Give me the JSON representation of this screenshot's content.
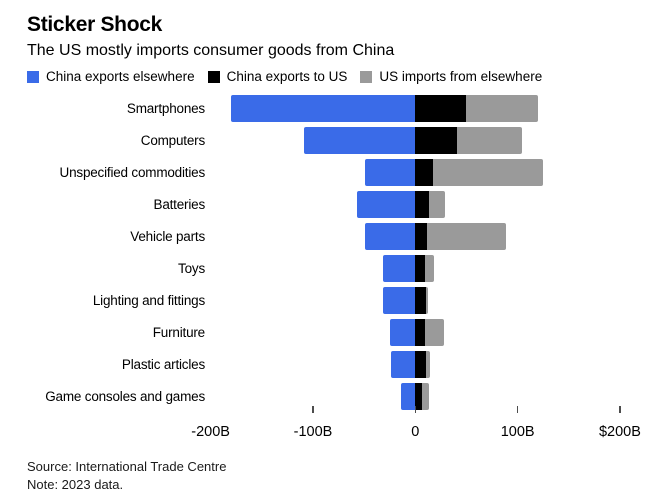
{
  "title": "Sticker Shock",
  "subtitle": "The US mostly imports consumer goods from China",
  "legend": {
    "items": [
      {
        "name": "china-exports-elsewhere",
        "label": "China exports elsewhere",
        "color": "#3A6BE8"
      },
      {
        "name": "china-exports-to-us",
        "label": "China exports to US",
        "color": "#000000"
      },
      {
        "name": "us-imports-from-elsewhere",
        "label": "US imports from elsewhere",
        "color": "#9A9A9A"
      }
    ]
  },
  "footer": {
    "source": "Source: International Trade Centre",
    "note": "Note: 2023 data."
  },
  "colors": {
    "blue": "#3A6BE8",
    "black": "#000000",
    "gray": "#9A9A9A",
    "background": "#FFFFFF",
    "tick": "#4D4D4D"
  },
  "chart_data": {
    "type": "bar",
    "variant": "horizontal-diverging-stacked",
    "unit": "USD billions",
    "title": "Sticker Shock",
    "subtitle": "The US mostly imports consumer goods from China",
    "grid": false,
    "legend_position": "top",
    "categories": [
      "Smartphones",
      "Computers",
      "Unspecified commodities",
      "Batteries",
      "Vehicle parts",
      "Toys",
      "Lighting and fittings",
      "Furniture",
      "Plastic articles",
      "Game consoles and games"
    ],
    "series": [
      {
        "name": "China exports elsewhere",
        "side": "left",
        "color": "#3A6BE8",
        "values": [
          180,
          109,
          49,
          57,
          49,
          32,
          32,
          25,
          24,
          14
        ]
      },
      {
        "name": "China exports to US",
        "side": "right",
        "color": "#000000",
        "values": [
          50,
          41,
          17,
          13,
          11,
          9,
          10,
          9,
          10,
          7
        ]
      },
      {
        "name": "US imports from elsewhere",
        "side": "right-stacked",
        "color": "#9A9A9A",
        "values": [
          70,
          63,
          108,
          16,
          78,
          9,
          2,
          19,
          4,
          6
        ]
      }
    ],
    "x_axis": {
      "xlim": [
        -200,
        248
      ],
      "ticks": [
        {
          "value": -200,
          "label": "-200B",
          "tick_mark": false
        },
        {
          "value": -100,
          "label": "-100B",
          "tick_mark": true
        },
        {
          "value": 0,
          "label": "0",
          "tick_mark": true
        },
        {
          "value": 100,
          "label": "100B",
          "tick_mark": true
        },
        {
          "value": 200,
          "label": "$200B",
          "tick_mark": true
        }
      ]
    }
  }
}
